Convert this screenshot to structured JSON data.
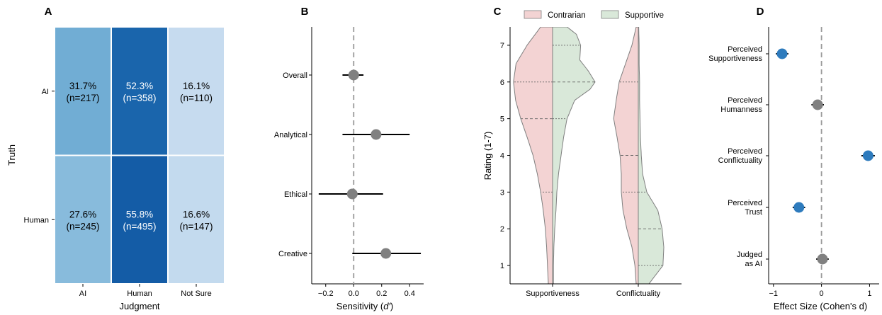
{
  "chart_data": [
    {
      "panel": "A",
      "type": "heatmap",
      "xlabel": "Judgment",
      "ylabel": "Truth",
      "columns": [
        "AI",
        "Human",
        "Not Sure"
      ],
      "rows": [
        "AI",
        "Human"
      ],
      "cells": [
        [
          {
            "pct": "31.7%",
            "n": "(n=217)",
            "value": 31.7
          },
          {
            "pct": "52.3%",
            "n": "(n=358)",
            "value": 52.3
          },
          {
            "pct": "16.1%",
            "n": "(n=110)",
            "value": 16.1
          }
        ],
        [
          {
            "pct": "27.6%",
            "n": "(n=245)",
            "value": 27.6
          },
          {
            "pct": "55.8%",
            "n": "(n=495)",
            "value": 55.8
          },
          {
            "pct": "16.6%",
            "n": "(n=147)",
            "value": 16.6
          }
        ]
      ]
    },
    {
      "panel": "B",
      "type": "scatter",
      "xlabel": "Sensitivity (",
      "xlabel_sym": "d′",
      "xlabel_end": ")",
      "xlim": [
        -0.3,
        0.5
      ],
      "xticks": [
        -0.2,
        0.0,
        0.2,
        0.4
      ],
      "xtick_labels": [
        "−0.2",
        "0.0",
        "0.2",
        "0.4"
      ],
      "reference_line": 0,
      "categories": [
        "Overall",
        "Analytical",
        "Ethical",
        "Creative"
      ],
      "points": [
        {
          "label": "Overall",
          "value": 0.0,
          "lo": -0.08,
          "hi": 0.07
        },
        {
          "label": "Analytical",
          "value": 0.16,
          "lo": -0.08,
          "hi": 0.4
        },
        {
          "label": "Ethical",
          "value": -0.01,
          "lo": -0.25,
          "hi": 0.21
        },
        {
          "label": "Creative",
          "value": 0.23,
          "lo": -0.01,
          "hi": 0.48
        }
      ],
      "point_color": "#808080"
    },
    {
      "panel": "C",
      "type": "violin",
      "ylabel": "Rating (1-7)",
      "ylim": [
        0.5,
        7.5
      ],
      "yticks": [
        1,
        2,
        3,
        4,
        5,
        6,
        7
      ],
      "categories": [
        "Supportiveness",
        "Conflictuality"
      ],
      "legend": [
        {
          "name": "Contrarian",
          "color": "#f3d3d3"
        },
        {
          "name": "Supportive",
          "color": "#d9e8d9"
        }
      ],
      "legend_position": "top",
      "violins": [
        {
          "category": "Supportiveness",
          "contrarian": {
            "quartiles": [
              3,
              5,
              6
            ],
            "density": [
              [
                0.5,
                0.1
              ],
              [
                1,
                0.12
              ],
              [
                1.5,
                0.14
              ],
              [
                2,
                0.17
              ],
              [
                2.5,
                0.22
              ],
              [
                3,
                0.28
              ],
              [
                3.5,
                0.36
              ],
              [
                4,
                0.46
              ],
              [
                4.5,
                0.6
              ],
              [
                5,
                0.75
              ],
              [
                5.5,
                0.87
              ],
              [
                6,
                0.92
              ],
              [
                6.5,
                0.86
              ],
              [
                7,
                0.6
              ],
              [
                7.5,
                0.28
              ]
            ]
          },
          "supportive": {
            "quartiles": [
              5,
              6,
              7
            ],
            "density": [
              [
                0.5,
                0.02
              ],
              [
                1,
                0.02
              ],
              [
                1.5,
                0.03
              ],
              [
                2,
                0.05
              ],
              [
                2.5,
                0.08
              ],
              [
                3,
                0.1
              ],
              [
                3.5,
                0.14
              ],
              [
                4,
                0.2
              ],
              [
                4.5,
                0.26
              ],
              [
                5,
                0.34
              ],
              [
                5.5,
                0.52
              ],
              [
                5.8,
                0.88
              ],
              [
                6,
                1.0
              ],
              [
                6.3,
                0.84
              ],
              [
                6.6,
                0.64
              ],
              [
                7,
                0.66
              ],
              [
                7.3,
                0.56
              ],
              [
                7.5,
                0.34
              ]
            ]
          }
        },
        {
          "category": "Conflictuality",
          "contrarian": {
            "quartiles": [
              3,
              4,
              6
            ],
            "density": [
              [
                0.5,
                0.05
              ],
              [
                1,
                0.08
              ],
              [
                1.5,
                0.15
              ],
              [
                2,
                0.27
              ],
              [
                2.5,
                0.36
              ],
              [
                3,
                0.4
              ],
              [
                3.5,
                0.4
              ],
              [
                4,
                0.43
              ],
              [
                4.5,
                0.5
              ],
              [
                5,
                0.58
              ],
              [
                5.5,
                0.52
              ],
              [
                6,
                0.45
              ],
              [
                6.5,
                0.3
              ],
              [
                7,
                0.15
              ],
              [
                7.5,
                0.05
              ]
            ]
          },
          "supportive": {
            "quartiles": [
              1,
              2,
              3
            ],
            "density": [
              [
                0.5,
                0.25
              ],
              [
                1,
                0.58
              ],
              [
                1.5,
                0.6
              ],
              [
                2,
                0.56
              ],
              [
                2.5,
                0.46
              ],
              [
                3,
                0.2
              ],
              [
                3.5,
                0.1
              ],
              [
                4,
                0.07
              ],
              [
                4.5,
                0.05
              ],
              [
                5,
                0.04
              ],
              [
                5.5,
                0.03
              ],
              [
                6,
                0.03
              ],
              [
                6.5,
                0.02
              ],
              [
                7,
                0.02
              ],
              [
                7.5,
                0.01
              ]
            ]
          }
        }
      ]
    },
    {
      "panel": "D",
      "type": "scatter",
      "xlabel": "Effect Size (Cohen's d)",
      "xlim": [
        -1.1,
        1.2
      ],
      "xticks": [
        -1,
        0,
        1
      ],
      "xtick_labels": [
        "−1",
        "0",
        "1"
      ],
      "reference_line": 0,
      "categories": [
        [
          "Perceived",
          "Supportiveness"
        ],
        [
          "Perceived",
          "Humanness"
        ],
        [
          "Perceived",
          "Conflictuality"
        ],
        [
          "Perceived",
          "Trust"
        ],
        [
          "Judged",
          "as AI"
        ]
      ],
      "points": [
        {
          "value": -0.82,
          "lo": -0.95,
          "hi": -0.69,
          "color": "#2e7bbd"
        },
        {
          "value": -0.08,
          "lo": -0.21,
          "hi": 0.05,
          "color": "#808080"
        },
        {
          "value": 0.97,
          "lo": 0.83,
          "hi": 1.11,
          "color": "#2e7bbd"
        },
        {
          "value": -0.47,
          "lo": -0.6,
          "hi": -0.34,
          "color": "#2e7bbd"
        },
        {
          "value": 0.02,
          "lo": -0.11,
          "hi": 0.15,
          "color": "#808080"
        }
      ]
    }
  ]
}
